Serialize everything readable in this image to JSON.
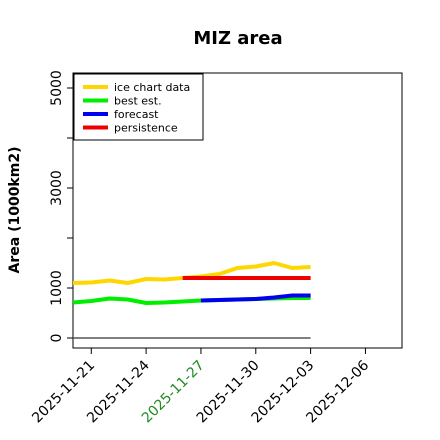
{
  "chart_data": {
    "type": "line",
    "title": "MIZ area",
    "ylabel": "Area (1000km2)",
    "xlabel": "",
    "xlim": [
      "2025-11-20",
      "2025-12-08"
    ],
    "ylim": [
      -200,
      5300
    ],
    "yticks": [
      0,
      1000,
      3000,
      5000
    ],
    "xticks": [
      {
        "label": "2025-11-21",
        "color": "#000000"
      },
      {
        "label": "2025-11-24",
        "color": "#000000"
      },
      {
        "label": "2025-11-27",
        "color": "#228b22"
      },
      {
        "label": "2025-11-30",
        "color": "#000000"
      },
      {
        "label": "2025-12-03",
        "color": "#000000"
      },
      {
        "label": "2025-12-06",
        "color": "#000000"
      }
    ],
    "legend_position": "top-left",
    "grid": false,
    "series": [
      {
        "name": "ice chart data",
        "color": "#ffd700",
        "x": [
          "2025-11-20",
          "2025-11-21",
          "2025-11-22",
          "2025-11-23",
          "2025-11-24",
          "2025-11-25",
          "2025-11-26",
          "2025-11-27",
          "2025-11-28",
          "2025-11-29",
          "2025-11-30",
          "2025-12-01",
          "2025-12-02",
          "2025-12-03"
        ],
        "y": [
          1100,
          1110,
          1150,
          1100,
          1180,
          1170,
          1200,
          1230,
          1280,
          1400,
          1430,
          1500,
          1400,
          1420
        ]
      },
      {
        "name": "best est.",
        "color": "#00ee00",
        "x": [
          "2025-11-20",
          "2025-11-21",
          "2025-11-22",
          "2025-11-23",
          "2025-11-24",
          "2025-11-25",
          "2025-11-26",
          "2025-11-27",
          "2025-11-28",
          "2025-11-29",
          "2025-11-30",
          "2025-12-01",
          "2025-12-02",
          "2025-12-03"
        ],
        "y": [
          710,
          740,
          790,
          770,
          700,
          710,
          730,
          750,
          760,
          770,
          780,
          790,
          800,
          800
        ]
      },
      {
        "name": "forecast",
        "color": "#0000ee",
        "x": [
          "2025-11-27",
          "2025-11-28",
          "2025-11-29",
          "2025-11-30",
          "2025-12-01",
          "2025-12-02",
          "2025-12-03"
        ],
        "y": [
          750,
          760,
          770,
          780,
          810,
          850,
          850
        ]
      },
      {
        "name": "persistence",
        "color": "#ee0000",
        "x": [
          "2025-11-26",
          "2025-12-03"
        ],
        "y": [
          1200,
          1200
        ]
      },
      {
        "name": "",
        "color": "#555555",
        "thin": true,
        "x": [
          "2025-11-20",
          "2025-12-03"
        ],
        "y": [
          0,
          0
        ]
      }
    ]
  }
}
